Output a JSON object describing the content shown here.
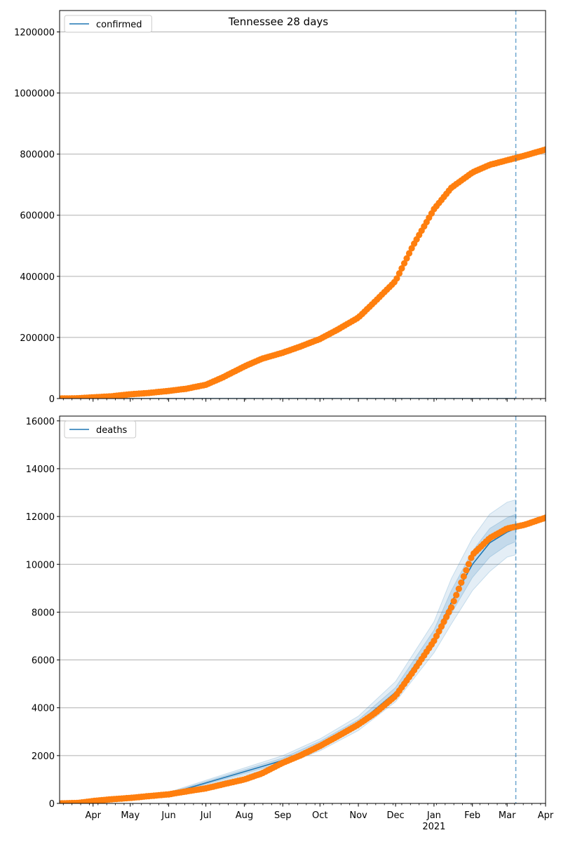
{
  "figure_title": "Tennessee 28 days",
  "colors": {
    "observed": "#ff7f0e",
    "model": "#1f77b4",
    "band": "#1f77b4",
    "grid": "#b0b0b0",
    "vline": "#1f77b4"
  },
  "chart_data": [
    {
      "type": "scatter",
      "name": "confirmed-panel",
      "legend": {
        "label": "confirmed",
        "position": "upper-left"
      },
      "ylim": [
        0,
        1270000
      ],
      "yticks": [
        0,
        200000,
        400000,
        600000,
        800000,
        1000000,
        1200000
      ],
      "ytick_labels": [
        "0",
        "200000",
        "400000",
        "600000",
        "800000",
        "1000000",
        "1200000"
      ],
      "grid": "y",
      "forecast_start": "2021-03-08",
      "x_range": [
        "2020-03-05",
        "2021-04-01"
      ],
      "observed": {
        "x": [
          "2020-03-05",
          "2020-03-20",
          "2020-04-01",
          "2020-04-15",
          "2020-05-01",
          "2020-05-15",
          "2020-06-01",
          "2020-06-15",
          "2020-07-01",
          "2020-07-15",
          "2020-08-01",
          "2020-08-15",
          "2020-09-01",
          "2020-09-15",
          "2020-10-01",
          "2020-10-15",
          "2020-11-01",
          "2020-11-15",
          "2020-12-01",
          "2020-12-15",
          "2021-01-01",
          "2021-01-15",
          "2021-02-01",
          "2021-02-15",
          "2021-03-01",
          "2021-03-15",
          "2021-04-01"
        ],
        "y": [
          0,
          1000,
          4000,
          7000,
          14000,
          18000,
          25000,
          32000,
          45000,
          70000,
          105000,
          130000,
          150000,
          170000,
          195000,
          225000,
          265000,
          320000,
          385000,
          500000,
          620000,
          690000,
          740000,
          765000,
          780000,
          795000,
          815000
        ]
      },
      "model": {
        "x": [
          "2020-03-05",
          "2021-03-08"
        ],
        "y": [
          0,
          0
        ]
      }
    },
    {
      "type": "scatter",
      "name": "deaths-panel",
      "legend": {
        "label": "deaths",
        "position": "upper-left"
      },
      "ylim": [
        0,
        16200
      ],
      "yticks": [
        0,
        2000,
        4000,
        6000,
        8000,
        10000,
        12000,
        14000,
        16000
      ],
      "ytick_labels": [
        "0",
        "2000",
        "4000",
        "6000",
        "8000",
        "10000",
        "12000",
        "14000",
        "16000"
      ],
      "grid": "y",
      "forecast_start": "2021-03-08",
      "x_range": [
        "2020-03-05",
        "2021-04-01"
      ],
      "observed": {
        "x": [
          "2020-03-05",
          "2020-03-20",
          "2020-04-01",
          "2020-04-15",
          "2020-05-01",
          "2020-05-15",
          "2020-06-01",
          "2020-06-15",
          "2020-07-01",
          "2020-07-15",
          "2020-08-01",
          "2020-08-15",
          "2020-09-01",
          "2020-09-15",
          "2020-10-01",
          "2020-10-15",
          "2020-11-01",
          "2020-11-15",
          "2020-12-01",
          "2020-12-15",
          "2021-01-01",
          "2021-01-15",
          "2021-02-01",
          "2021-02-15",
          "2021-03-01",
          "2021-03-15",
          "2021-04-01"
        ],
        "y": [
          0,
          20,
          100,
          170,
          230,
          300,
          380,
          500,
          630,
          800,
          1000,
          1250,
          1700,
          2000,
          2400,
          2800,
          3300,
          3800,
          4500,
          5500,
          6800,
          8200,
          10400,
          11100,
          11500,
          11650,
          11950
        ]
      },
      "model": {
        "x": [
          "2020-03-05",
          "2020-06-01",
          "2020-09-01",
          "2020-10-01",
          "2020-11-01",
          "2020-12-01",
          "2021-01-01",
          "2021-01-15",
          "2021-02-01",
          "2021-02-15",
          "2021-03-01",
          "2021-03-08"
        ],
        "y": [
          0,
          400,
          1800,
          2450,
          3350,
          4650,
          6900,
          8400,
          10000,
          10900,
          11350,
          11500
        ],
        "bands": [
          {
            "lower": [
              0,
              330,
              1600,
              2200,
              3050,
              4250,
              6300,
              7500,
              8900,
              9700,
              10300,
              10400
            ],
            "upper": [
              0,
              470,
              2000,
              2700,
              3650,
              5100,
              7600,
              9400,
              11100,
              12100,
              12600,
              12700
            ]
          },
          {
            "lower": [
              0,
              360,
              1700,
              2300,
              3200,
              4450,
              6600,
              7950,
              9450,
              10300,
              10800,
              10950
            ],
            "upper": [
              0,
              440,
              1900,
              2600,
              3500,
              4850,
              7250,
              8900,
              10550,
              11500,
              11950,
              12100
            ]
          }
        ]
      }
    }
  ],
  "x_axis": {
    "month_ticks": [
      "2020-04-01",
      "2020-05-01",
      "2020-06-01",
      "2020-07-01",
      "2020-08-01",
      "2020-09-01",
      "2020-10-01",
      "2020-11-01",
      "2020-12-01",
      "2021-01-01",
      "2021-02-01",
      "2021-03-01",
      "2021-04-01"
    ],
    "month_labels": [
      "Apr",
      "May",
      "Jun",
      "Jul",
      "Aug",
      "Sep",
      "Oct",
      "Nov",
      "Dec",
      "Jan",
      "Feb",
      "Mar",
      "Apr"
    ],
    "year_label": "2021",
    "year_label_at": "2021-01-01"
  }
}
